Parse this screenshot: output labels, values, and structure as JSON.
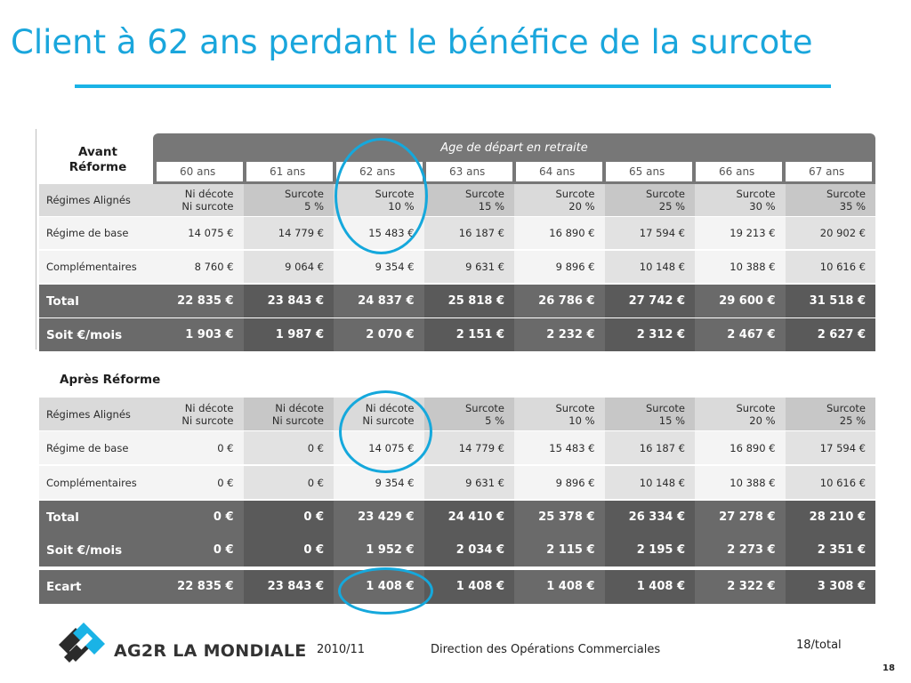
{
  "title": "Client à 62 ans perdant le bénéfice de la surcote",
  "top_table": {
    "corner_line1": "Avant",
    "corner_line2": "Réforme",
    "band_title": "Age de départ en retraite",
    "ages": [
      "60 ans",
      "61 ans",
      "62 ans",
      "63 ans",
      "64 ans",
      "65 ans",
      "66 ans",
      "67 ans"
    ],
    "rows": [
      {
        "label": "Régimes Alignés",
        "style": "hdr",
        "cells": [
          [
            "Ni décote",
            "Ni surcote"
          ],
          [
            "Surcote",
            "5 %"
          ],
          [
            "Surcote",
            "10 %"
          ],
          [
            "Surcote",
            "15 %"
          ],
          [
            "Surcote",
            "20 %"
          ],
          [
            "Surcote",
            "25 %"
          ],
          [
            "Surcote",
            "30 %"
          ],
          [
            "Surcote",
            "35 %"
          ]
        ]
      },
      {
        "label": "Régime de base",
        "style": "light",
        "cells": [
          "14 075 €",
          "14 779 €",
          "15 483 €",
          "16 187 €",
          "16 890 €",
          "17 594 €",
          "19 213 €",
          "20 902 €"
        ]
      },
      {
        "label": "Complémentaires",
        "style": "light",
        "cells": [
          "8 760 €",
          "9 064 €",
          "9 354 €",
          "9 631 €",
          "9 896 €",
          "10 148 €",
          "10 388 €",
          "10 616 €"
        ]
      },
      {
        "label": "Total",
        "style": "dark",
        "cells": [
          "22 835 €",
          "23 843 €",
          "24 837 €",
          "25 818 €",
          "26 786 €",
          "27 742 €",
          "29 600 €",
          "31 518 €"
        ]
      },
      {
        "label": "Soit €/mois",
        "style": "dark",
        "cells": [
          "1 903 €",
          "1 987 €",
          "2 070 €",
          "2 151 €",
          "2 232 €",
          "2 312 €",
          "2 467 €",
          "2 627 €"
        ]
      }
    ]
  },
  "bottom_table": {
    "heading": "Après Réforme",
    "rows": [
      {
        "label": "Régimes Alignés",
        "style": "hdr",
        "cells": [
          [
            "Ni décote",
            "Ni surcote"
          ],
          [
            "Ni décote",
            "Ni surcote"
          ],
          [
            "Ni décote",
            "Ni surcote"
          ],
          [
            "Surcote",
            "5 %"
          ],
          [
            "Surcote",
            "10 %"
          ],
          [
            "Surcote",
            "15 %"
          ],
          [
            "Surcote",
            "20 %"
          ],
          [
            "Surcote",
            "25 %"
          ]
        ]
      },
      {
        "label": "Régime de base",
        "style": "light",
        "cells": [
          "0 €",
          "0 €",
          "14 075 €",
          "14 779 €",
          "15 483 €",
          "16 187 €",
          "16 890 €",
          "17 594 €"
        ]
      },
      {
        "label": "Complémentaires",
        "style": "light",
        "cells": [
          "0 €",
          "0 €",
          "9 354 €",
          "9 631 €",
          "9 896 €",
          "10 148 €",
          "10 388 €",
          "10 616 €"
        ]
      },
      {
        "label": "Total",
        "style": "dark",
        "cells": [
          "0 €",
          "0 €",
          "23 429 €",
          "24 410 €",
          "25 378 €",
          "26 334 €",
          "27 278 €",
          "28 210 €"
        ]
      },
      {
        "label": "Soit €/mois",
        "style": "dark",
        "cells": [
          "0 €",
          "0 €",
          "1 952 €",
          "2 034 €",
          "2 115 €",
          "2 195 €",
          "2 273 €",
          "2 351 €"
        ]
      }
    ]
  },
  "ecart": {
    "label": "Ecart",
    "cells": [
      "22 835 €",
      "23 843 €",
      "1 408 €",
      "1 408 €",
      "1 408 €",
      "1 408 €",
      "2 322 €",
      "3 308 €"
    ]
  },
  "footer": {
    "brand": "AG2R LA MONDIALE",
    "date": "2010/11",
    "department": "Direction des Opérations Commerciales",
    "page_ref": "18/total",
    "page_number": "18"
  },
  "colors": {
    "accent": "#1aa6dc",
    "dark_row": "#6a6a6a",
    "header_band": "#777777"
  }
}
